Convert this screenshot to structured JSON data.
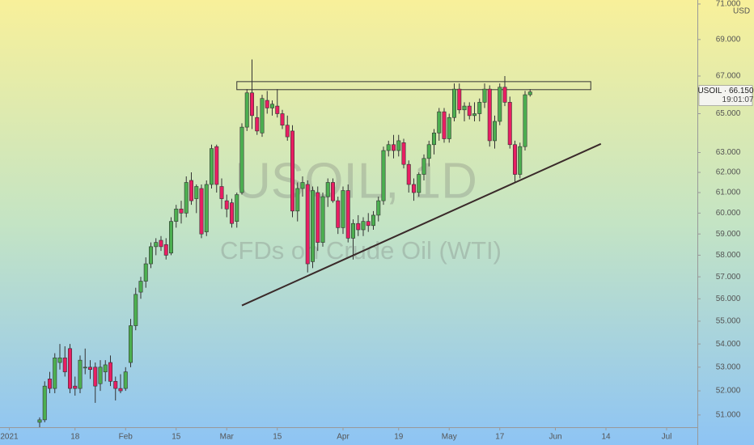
{
  "chart_data": {
    "type": "candlestick",
    "currency": "USD",
    "watermark": [
      "USOIL, 1D",
      "CFDs on Crude Oil (WTI)"
    ],
    "log_scale": true,
    "up_color": "#4caf50",
    "down_color": "#e91e63",
    "x": [
      0,
      1,
      2,
      3,
      4,
      5,
      6,
      7,
      8,
      9,
      10,
      11,
      12,
      13,
      14,
      15,
      16,
      17,
      18,
      19,
      20,
      21,
      22,
      23,
      24,
      25,
      26,
      27,
      28,
      29,
      30,
      31,
      32,
      33,
      34,
      35,
      36,
      37,
      38,
      39,
      40,
      41,
      42,
      43,
      44,
      45,
      46,
      47,
      48,
      49,
      50,
      51,
      52,
      53,
      54,
      55,
      56,
      57,
      58,
      59,
      60,
      61,
      62,
      63,
      64,
      65,
      66,
      67,
      68,
      69,
      70,
      71,
      72,
      73,
      74,
      75,
      76,
      77,
      78,
      79,
      80,
      81,
      82,
      83,
      84,
      85,
      86,
      87,
      88,
      89,
      90,
      91,
      92,
      93,
      94,
      95,
      96,
      97
    ],
    "open": [
      50.7,
      50.8,
      52.5,
      52.1,
      53.2,
      53.4,
      53.8,
      52.2,
      52.1,
      53.0,
      53.0,
      53.0,
      52.3,
      52.8,
      53.2,
      52.4,
      52.1,
      52.1,
      53.2,
      54.8,
      56.3,
      56.8,
      57.6,
      58.4,
      58.7,
      58.5,
      58.1,
      59.6,
      60.2,
      60.0,
      61.6,
      60.7,
      61.2,
      59.1,
      61.4,
      63.3,
      61.3,
      60.6,
      60.5,
      59.6,
      61.0,
      64.3,
      66.1,
      64.8,
      64.0,
      65.7,
      65.3,
      65.4,
      65.0,
      64.4,
      64.1,
      60.1,
      61.2,
      61.4,
      57.7,
      61.0,
      58.6,
      60.8,
      61.5,
      60.6,
      59.3,
      61.1,
      58.8,
      59.5,
      59.2,
      59.6,
      59.4,
      59.9,
      60.6,
      63.1,
      63.4,
      63.1,
      63.5,
      62.4,
      61.4,
      61.0,
      61.9,
      62.7,
      63.4,
      64.0,
      65.1,
      63.7,
      64.8,
      66.3,
      65.2,
      65.4,
      64.9,
      65.0,
      65.6,
      66.3,
      63.6,
      64.6,
      66.4,
      65.6,
      63.4,
      61.9,
      63.3,
      66.0
    ],
    "high": [
      50.9,
      52.4,
      52.8,
      53.6,
      54.0,
      53.9,
      54.0,
      52.6,
      53.5,
      53.8,
      53.3,
      53.2,
      53.3,
      53.3,
      53.5,
      52.6,
      52.7,
      53.0,
      55.1,
      56.5,
      57.0,
      57.9,
      58.6,
      58.8,
      58.9,
      58.8,
      59.8,
      60.4,
      60.6,
      61.8,
      62.0,
      61.4,
      61.4,
      61.6,
      63.4,
      63.4,
      61.7,
      60.9,
      60.7,
      61.0,
      64.5,
      66.3,
      67.9,
      65.4,
      66.0,
      66.2,
      65.7,
      66.3,
      65.2,
      64.9,
      64.4,
      61.5,
      61.8,
      61.6,
      61.3,
      61.3,
      61.0,
      61.7,
      61.7,
      60.8,
      61.3,
      61.4,
      59.7,
      59.9,
      59.8,
      60.0,
      60.1,
      60.8,
      63.3,
      63.6,
      63.9,
      63.9,
      63.7,
      62.6,
      61.7,
      62.0,
      62.9,
      63.6,
      64.2,
      65.3,
      65.3,
      65.0,
      66.6,
      66.6,
      65.6,
      65.6,
      65.6,
      65.8,
      66.6,
      66.5,
      64.9,
      66.6,
      67.0,
      65.9,
      63.6,
      63.5,
      66.2,
      66.3
    ],
    "low": [
      50.5,
      50.7,
      51.9,
      51.9,
      52.9,
      52.6,
      51.9,
      51.8,
      51.9,
      52.7,
      52.5,
      51.5,
      52.0,
      52.4,
      52.2,
      51.6,
      51.9,
      52.0,
      53.0,
      54.6,
      56.0,
      56.5,
      57.4,
      58.0,
      58.2,
      57.8,
      58.0,
      59.3,
      59.5,
      59.8,
      60.4,
      60.0,
      58.8,
      58.9,
      61.2,
      61.0,
      60.2,
      59.8,
      59.3,
      59.3,
      60.9,
      64.1,
      64.2,
      63.9,
      63.8,
      65.0,
      64.9,
      64.8,
      64.2,
      63.6,
      59.8,
      59.6,
      60.8,
      57.2,
      57.4,
      58.2,
      58.4,
      60.3,
      60.5,
      59.0,
      59.0,
      58.6,
      57.8,
      58.9,
      58.9,
      59.1,
      59.2,
      59.6,
      60.4,
      62.8,
      62.7,
      62.8,
      62.2,
      61.0,
      60.6,
      60.8,
      61.6,
      62.3,
      62.9,
      63.6,
      63.5,
      63.5,
      64.6,
      65.0,
      64.6,
      64.7,
      64.6,
      64.6,
      65.3,
      63.3,
      63.2,
      64.4,
      65.4,
      63.2,
      61.5,
      61.7,
      63.1,
      65.9
    ],
    "close": [
      50.8,
      52.2,
      52.1,
      53.4,
      53.4,
      52.8,
      52.1,
      52.1,
      53.3,
      53.0,
      52.9,
      52.2,
      53.0,
      53.1,
      52.4,
      52.1,
      52.0,
      52.8,
      54.8,
      56.2,
      56.8,
      57.6,
      58.4,
      58.6,
      58.4,
      58.0,
      59.6,
      60.2,
      60.0,
      61.5,
      60.6,
      61.3,
      59.0,
      61.4,
      63.2,
      61.4,
      60.7,
      60.2,
      59.5,
      60.9,
      64.3,
      66.1,
      64.9,
      64.1,
      65.8,
      65.3,
      65.5,
      65.0,
      64.4,
      63.8,
      60.1,
      61.2,
      61.5,
      57.6,
      61.1,
      58.6,
      60.8,
      61.5,
      60.6,
      59.3,
      61.1,
      58.8,
      59.5,
      59.2,
      59.6,
      59.4,
      59.9,
      60.6,
      63.1,
      63.4,
      63.1,
      63.6,
      62.4,
      61.4,
      61.0,
      61.9,
      62.7,
      63.4,
      64.0,
      65.1,
      63.7,
      64.8,
      66.3,
      65.2,
      65.4,
      64.9,
      65.0,
      65.6,
      66.3,
      63.6,
      64.6,
      66.4,
      65.6,
      63.4,
      61.9,
      63.3,
      66.0,
      66.15
    ],
    "xlim": [
      -7.84,
      130.08
    ],
    "xticks": [
      {
        "value": -6,
        "label": "2021"
      },
      {
        "value": 7,
        "label": "18"
      },
      {
        "value": 17,
        "label": "Feb"
      },
      {
        "value": 27,
        "label": "15"
      },
      {
        "value": 37,
        "label": "Mar"
      },
      {
        "value": 47,
        "label": "15"
      },
      {
        "value": 60,
        "label": "Apr"
      },
      {
        "value": 71,
        "label": "19"
      },
      {
        "value": 81,
        "label": "May"
      },
      {
        "value": 91,
        "label": "17"
      },
      {
        "value": 102,
        "label": "Jun"
      },
      {
        "value": 112,
        "label": "14"
      },
      {
        "value": 124,
        "label": "Jul"
      }
    ],
    "ylim": [
      50.5,
      71.23
    ],
    "yticks": [
      {
        "value": 51,
        "label": "51.000"
      },
      {
        "value": 52,
        "label": "52.000"
      },
      {
        "value": 53,
        "label": "53.000"
      },
      {
        "value": 54,
        "label": "54.000"
      },
      {
        "value": 55,
        "label": "55.000"
      },
      {
        "value": 56,
        "label": "56.000"
      },
      {
        "value": 57,
        "label": "57.000"
      },
      {
        "value": 58,
        "label": "58.000"
      },
      {
        "value": 59,
        "label": "59.000"
      },
      {
        "value": 60,
        "label": "60.000"
      },
      {
        "value": 61,
        "label": "61.000"
      },
      {
        "value": 62,
        "label": "62.000"
      },
      {
        "value": 63,
        "label": "63.000"
      },
      {
        "value": 65,
        "label": "65.000"
      },
      {
        "value": 67,
        "label": "67.000"
      },
      {
        "value": 69,
        "label": "69.000"
      },
      {
        "value": 71,
        "label": "71.000"
      }
    ],
    "price_tag": {
      "text": "USOIL · 66.150",
      "value": 66.15,
      "countdown": "19:01:07"
    },
    "drawings": {
      "rectangle": {
        "x": [
          39,
          109
        ],
        "y": [
          66.27,
          66.7
        ]
      },
      "trendline": {
        "x": [
          40,
          111
        ],
        "y": [
          55.7,
          63.44
        ]
      }
    }
  }
}
